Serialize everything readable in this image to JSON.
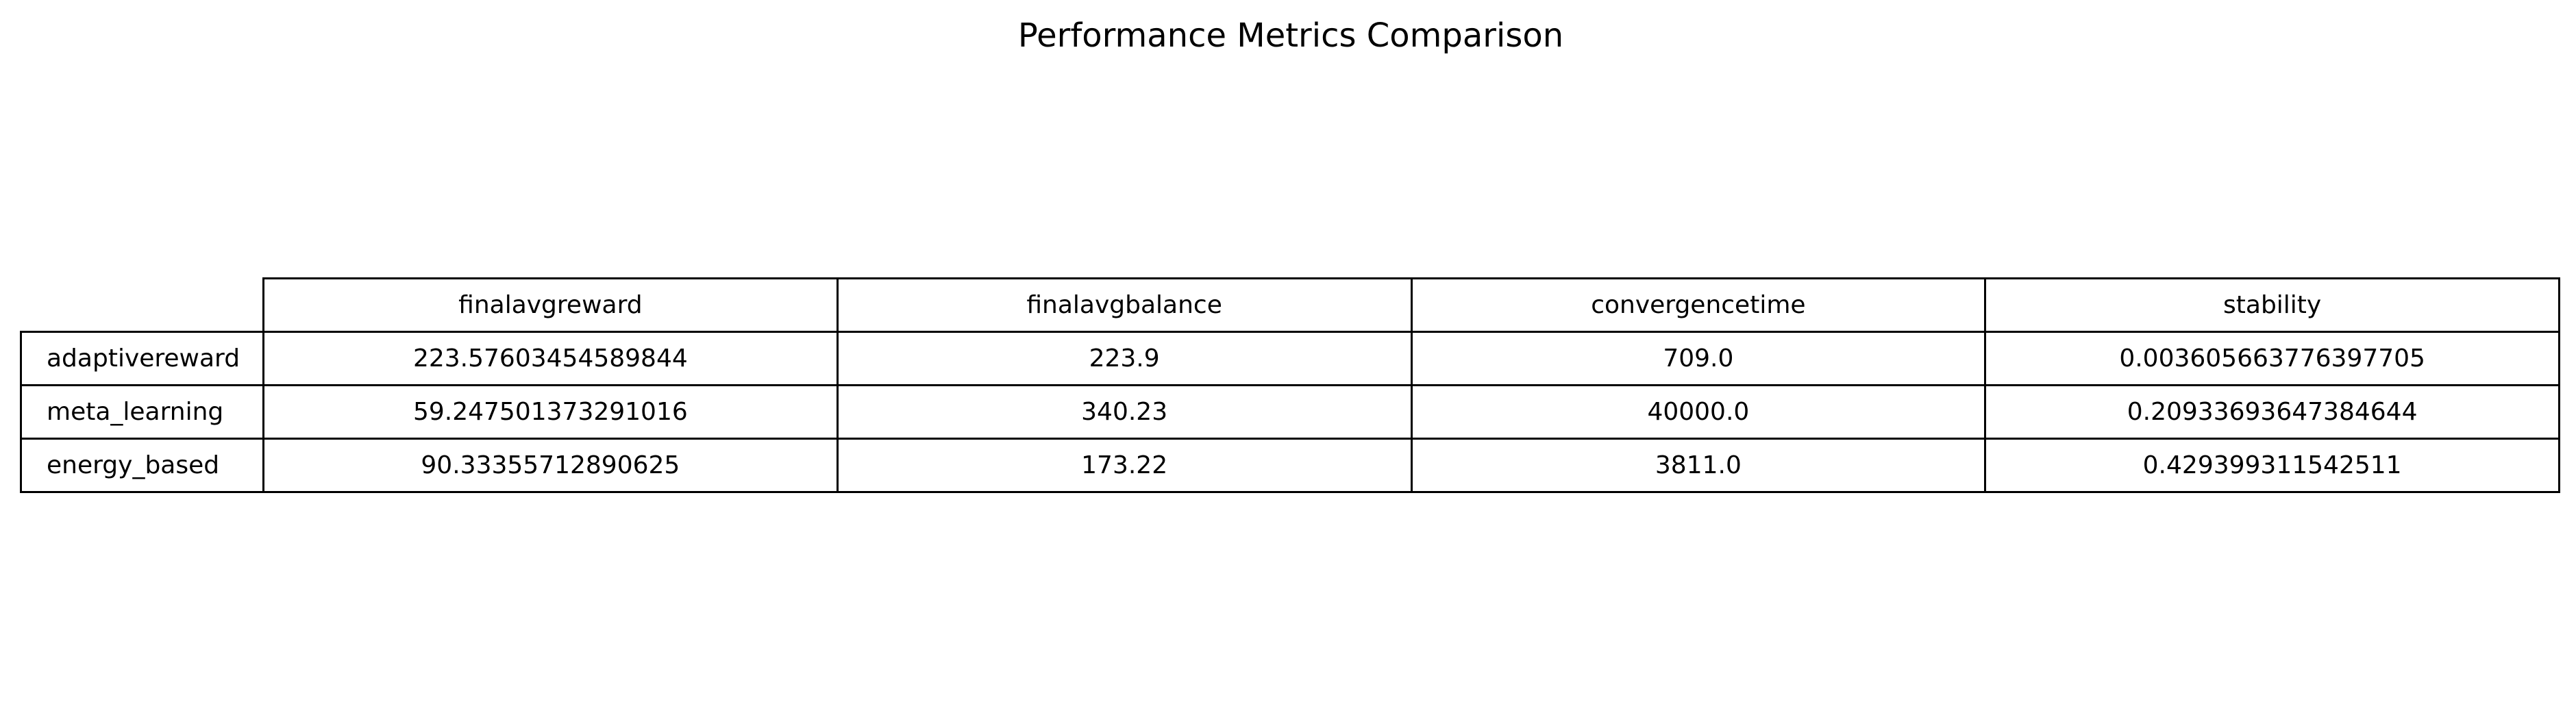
{
  "chart_data": {
    "type": "table",
    "title": "Performance Metrics Comparison",
    "columns": [
      "finalavgreward",
      "finalavgbalance",
      "convergencetime",
      "stability"
    ],
    "rows": [
      {
        "label": "adaptivereward",
        "values": [
          "223.57603454589844",
          "223.9",
          "709.0",
          "0.003605663776397705"
        ]
      },
      {
        "label": "meta_learning",
        "values": [
          "59.247501373291016",
          "340.23",
          "40000.0",
          "0.20933693647384644"
        ]
      },
      {
        "label": "energy_based",
        "values": [
          "90.33355712890625",
          "173.22",
          "3811.0",
          "0.429399311542511"
        ]
      }
    ],
    "grid": true
  }
}
